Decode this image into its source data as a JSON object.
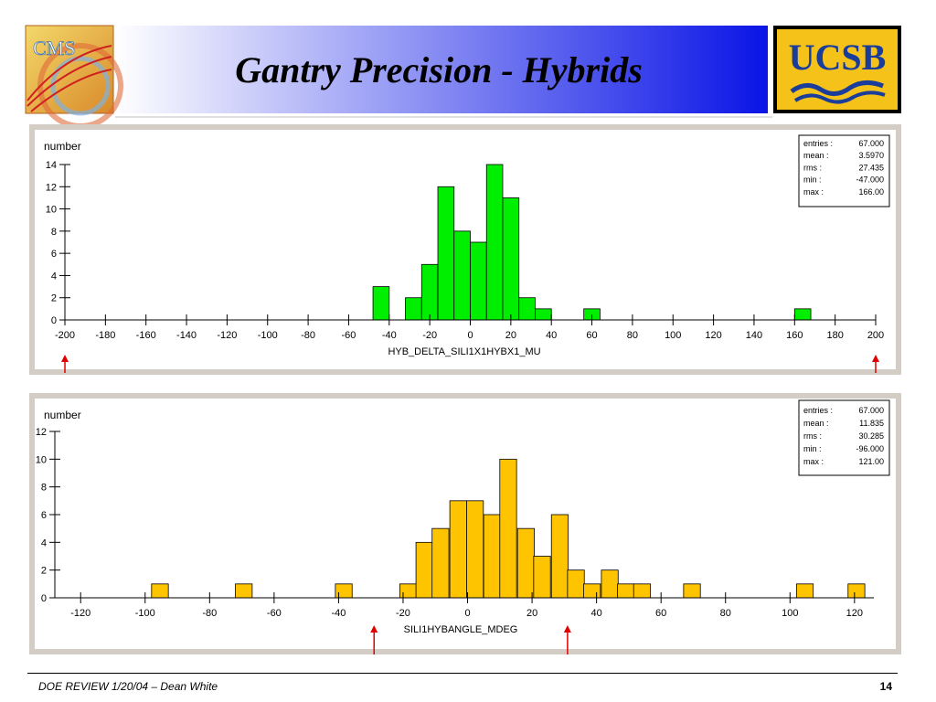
{
  "slide": {
    "title": "Gantry Precision - Hybrids",
    "logo_left": "CMS",
    "logo_right": "UCSB",
    "footer_left": "DOE REVIEW 1/20/04 – Dean White",
    "page_number": "14"
  },
  "colors": {
    "title_gradient_start": "#ffffff",
    "title_gradient_end": "#0a14e6",
    "panel_frame": "#d3cdc5",
    "hist1_fill": "#00ee00",
    "hist2_fill": "#ffc400",
    "arrow": "#e00000",
    "ucsb_bg": "#f5c21a",
    "ucsb_text": "#1a3d9c"
  },
  "chart_data": [
    {
      "type": "bar",
      "ylabel": "number",
      "xlabel": "HYB_DELTA_SILI1X1HYBX1_MU",
      "xlim": [
        -200,
        200
      ],
      "ylim": [
        0,
        14
      ],
      "xticks": [
        -200,
        -180,
        -160,
        -140,
        -120,
        -100,
        -80,
        -60,
        -40,
        -20,
        0,
        20,
        40,
        60,
        80,
        100,
        120,
        140,
        160,
        180,
        200
      ],
      "yticks": [
        0,
        2,
        4,
        6,
        8,
        10,
        12,
        14
      ],
      "bin_width": 8,
      "bins": [
        {
          "x": -48,
          "value": 3
        },
        {
          "x": -32,
          "value": 2
        },
        {
          "x": -24,
          "value": 5
        },
        {
          "x": -16,
          "value": 12
        },
        {
          "x": -8,
          "value": 8
        },
        {
          "x": 0,
          "value": 7
        },
        {
          "x": 8,
          "value": 14
        },
        {
          "x": 16,
          "value": 11
        },
        {
          "x": 24,
          "value": 2
        },
        {
          "x": 32,
          "value": 1
        },
        {
          "x": 56,
          "value": 1
        },
        {
          "x": 160,
          "value": 1
        }
      ],
      "stats": [
        {
          "label": "entries :",
          "value": "67.000"
        },
        {
          "label": "mean :",
          "value": "3.5970"
        },
        {
          "label": "rms :",
          "value": "27.435"
        },
        {
          "label": "min :",
          "value": "-47.000"
        },
        {
          "label": "max :",
          "value": "166.00"
        }
      ],
      "arrows": [
        -200,
        200
      ]
    },
    {
      "type": "bar",
      "ylabel": "number",
      "xlabel": "SILI1HYBANGLE_MDEG",
      "xlim": [
        -128,
        126
      ],
      "ylim": [
        0,
        12
      ],
      "xticks": [
        -120,
        -100,
        -80,
        -60,
        -40,
        -20,
        0,
        20,
        40,
        60,
        80,
        100,
        120
      ],
      "yticks": [
        0,
        2,
        4,
        6,
        8,
        10,
        12
      ],
      "bin_width": 5.2,
      "bins": [
        {
          "x": -98,
          "value": 1
        },
        {
          "x": -72,
          "value": 1
        },
        {
          "x": -41,
          "value": 1
        },
        {
          "x": -21,
          "value": 1
        },
        {
          "x": -16,
          "value": 4
        },
        {
          "x": -11,
          "value": 5
        },
        {
          "x": -5.5,
          "value": 7
        },
        {
          "x": -0.3,
          "value": 7
        },
        {
          "x": 5,
          "value": 6
        },
        {
          "x": 10,
          "value": 10
        },
        {
          "x": 15.5,
          "value": 5
        },
        {
          "x": 20.5,
          "value": 3
        },
        {
          "x": 26,
          "value": 6
        },
        {
          "x": 31,
          "value": 2
        },
        {
          "x": 36,
          "value": 1
        },
        {
          "x": 41.5,
          "value": 2
        },
        {
          "x": 46.5,
          "value": 1
        },
        {
          "x": 51.5,
          "value": 1
        },
        {
          "x": 67,
          "value": 1
        },
        {
          "x": 102,
          "value": 1
        },
        {
          "x": 118,
          "value": 1
        }
      ],
      "stats": [
        {
          "label": "entries :",
          "value": "67.000"
        },
        {
          "label": "mean :",
          "value": "11.835"
        },
        {
          "label": "rms :",
          "value": "30.285"
        },
        {
          "label": "min :",
          "value": "-96.000"
        },
        {
          "label": "max :",
          "value": "121.00"
        }
      ],
      "arrows": [
        -29,
        31
      ]
    }
  ]
}
